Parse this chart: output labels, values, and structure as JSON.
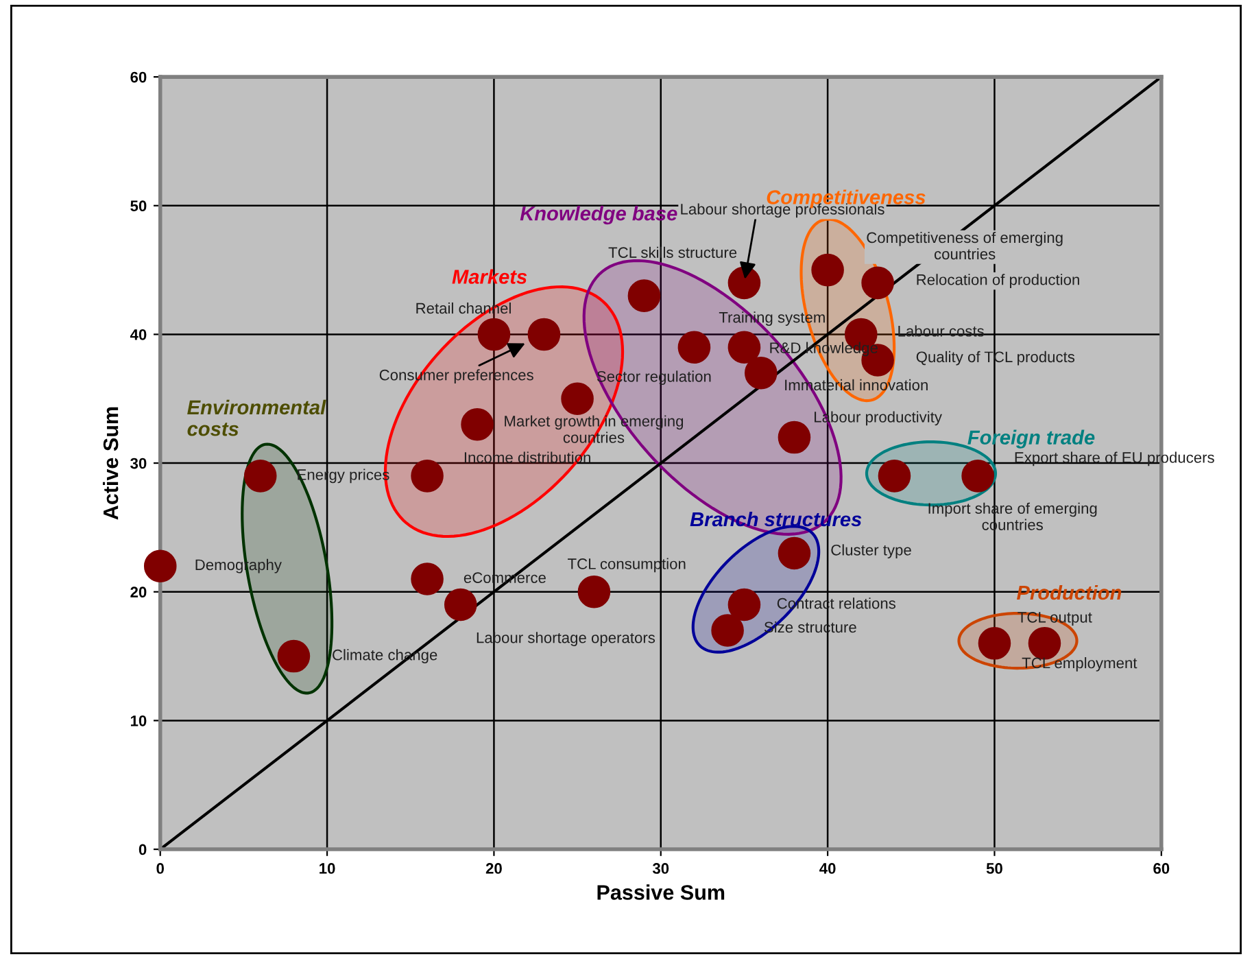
{
  "chart_data": {
    "type": "scatter",
    "xlabel": "Passive Sum",
    "ylabel": "Active Sum",
    "xlim": [
      0,
      60
    ],
    "ylim": [
      0,
      60
    ],
    "xticks": [
      0,
      10,
      20,
      30,
      40,
      50,
      60
    ],
    "yticks": [
      0,
      10,
      20,
      30,
      40,
      50,
      60
    ],
    "grid": true,
    "series": [
      {
        "color": "#800000",
        "marker": "circle",
        "x": [
          0,
          6,
          8,
          16,
          18,
          26,
          16,
          19,
          25,
          20,
          23,
          29,
          35,
          32,
          35,
          36,
          38,
          40,
          43,
          42,
          43,
          44,
          49,
          38,
          35,
          34,
          50,
          53
        ],
        "values": [
          22,
          29,
          15,
          21,
          19,
          20,
          29,
          33,
          35,
          40,
          40,
          43,
          44,
          39,
          39,
          37,
          32,
          45,
          44,
          40,
          38,
          29,
          29,
          23,
          19,
          17,
          16,
          16
        ]
      },
      {
        "type": "line",
        "marker": "none",
        "color": "#000000",
        "x": [
          0,
          60
        ],
        "values": [
          0,
          60
        ]
      }
    ],
    "annotations": [
      {
        "text": "Demography",
        "x": 0,
        "y": 22
      },
      {
        "text": "Energy prices",
        "x": 6,
        "y": 29
      },
      {
        "text": "Climate change",
        "x": 8,
        "y": 15
      },
      {
        "text": "eCommerce",
        "x": 16,
        "y": 21
      },
      {
        "text": "Labour shortage operators",
        "x": 18,
        "y": 19
      },
      {
        "text": "TCL consumption",
        "x": 26,
        "y": 20
      },
      {
        "text": "Income distribution",
        "x": 16,
        "y": 29
      },
      "Market growth in emerging\ncountries",
      {
        "text": "Sector regulation",
        "x": 25,
        "y": 35
      },
      {
        "text": "Retail channel",
        "x": 20,
        "y": 40
      },
      {
        "text": "Consumer preferences",
        "x": 23,
        "y": 40
      },
      {
        "text": "TCL skills structure",
        "x": 29,
        "y": 43
      },
      {
        "text": "Labour shortage professionals",
        "x": 35,
        "y": 44
      },
      {
        "text": "Training system",
        "x": 32,
        "y": 39
      },
      {
        "text": "R&D knowledge",
        "x": 35,
        "y": 39
      },
      {
        "text": "Immaterial innovation",
        "x": 36,
        "y": 37
      },
      {
        "text": "Labour productivity",
        "x": 38,
        "y": 32
      },
      {
        "text": "Competitiveness of emerging\ncountries",
        "x": 40,
        "y": 45
      },
      {
        "text": "Relocation of production",
        "x": 43,
        "y": 44
      },
      {
        "text": "Labour costs",
        "x": 42,
        "y": 40
      },
      {
        "text": "Quality of TCL products",
        "x": 43,
        "y": 38
      },
      {
        "text": "Import share of emerging\ncountries",
        "x": 44,
        "y": 29
      },
      {
        "text": "Export share of EU producers",
        "x": 49,
        "y": 29
      },
      {
        "text": "Cluster type",
        "x": 38,
        "y": 23
      },
      {
        "text": "Contract relations",
        "x": 35,
        "y": 19
      },
      {
        "text": "Size structure",
        "x": 34,
        "y": 17
      },
      {
        "text": "TCL output",
        "x": 50,
        "y": 16
      },
      {
        "text": "TCL employment",
        "x": 53,
        "y": 16
      },
      "Environmental\ncosts",
      "Markets",
      "Knowledge base",
      "Competitiveness",
      "Foreign trade",
      "Branch structures",
      "Production"
    ]
  }
}
